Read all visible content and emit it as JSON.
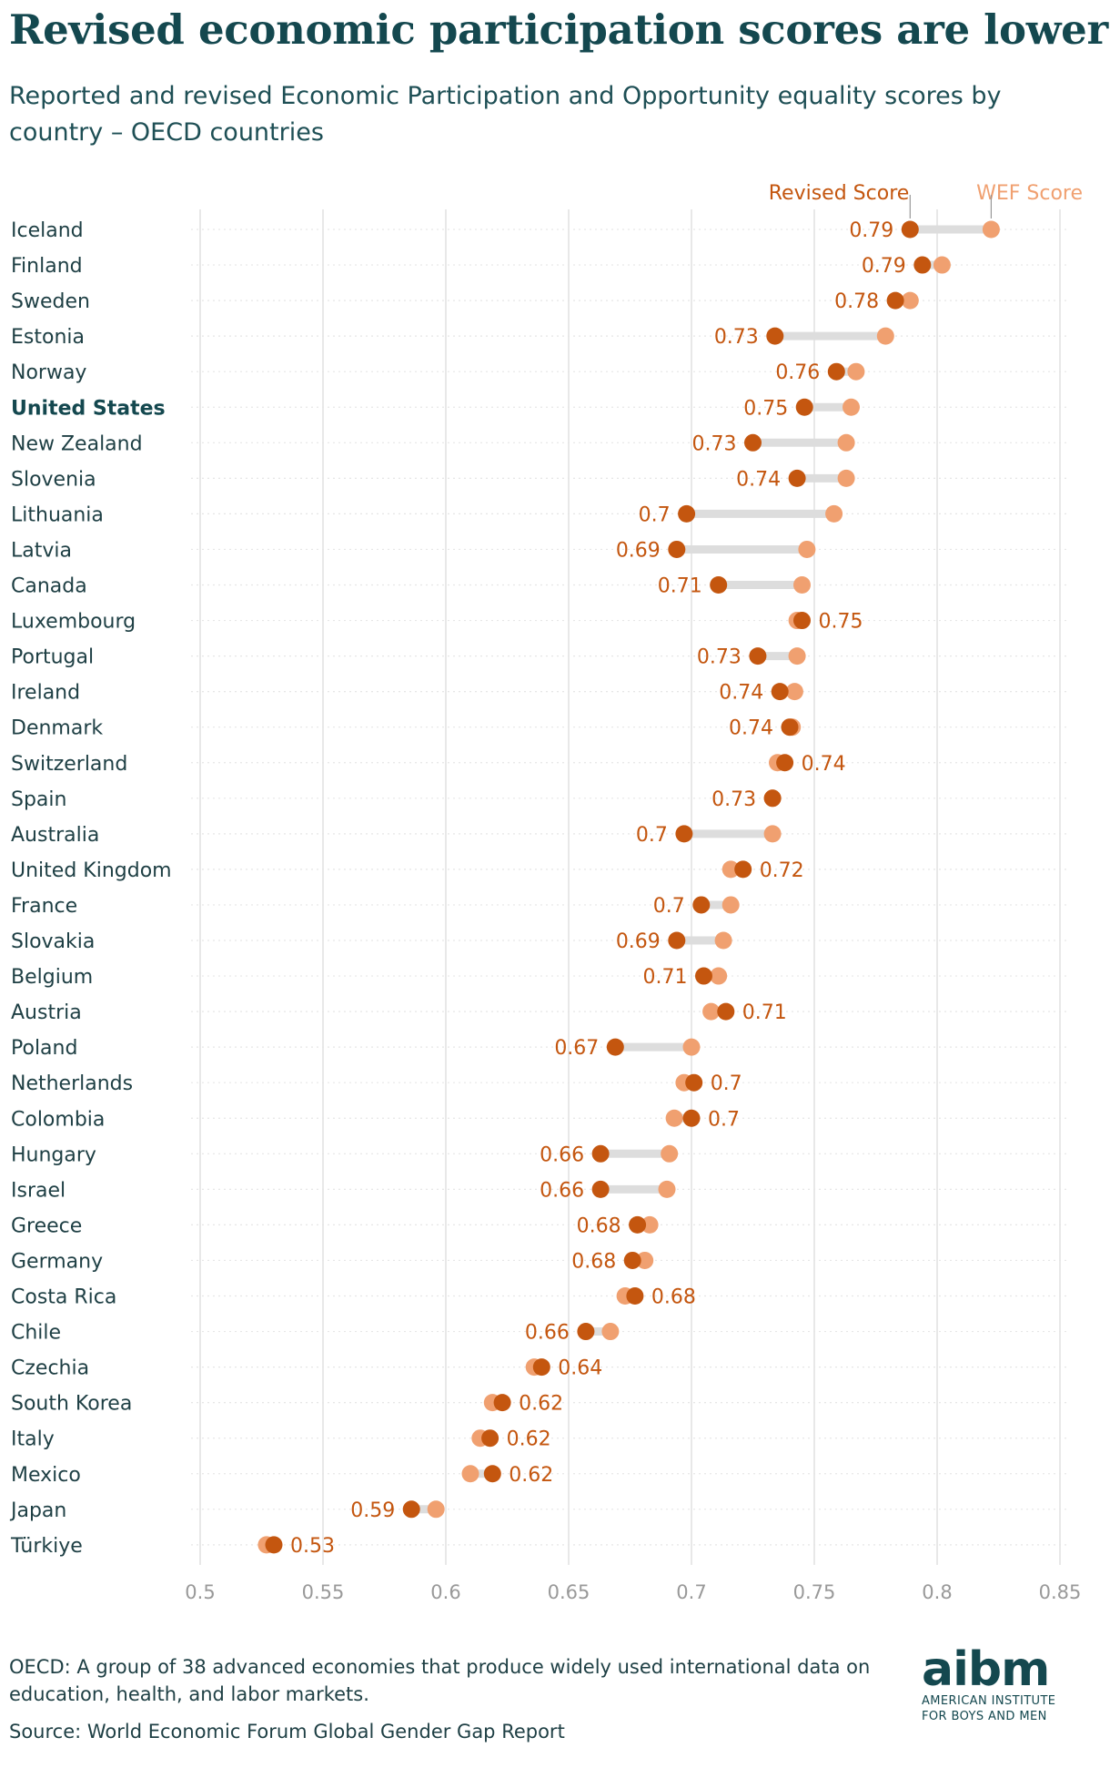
{
  "header": {
    "title": "Revised economic participation scores are lower",
    "subtitle": "Reported and revised Economic Participation and Opportunity equality scores by country – OECD countries"
  },
  "footer": {
    "note": "OECD: A group of 38 advanced economies that produce widely used international data on education, health, and labor markets.",
    "source": "Source: World Economic Forum Global Gender Gap Report"
  },
  "logo": {
    "mark": "aibm",
    "line1": "AMERICAN INSTITUTE",
    "line2": "FOR BOYS AND MEN"
  },
  "colors": {
    "revised": "#c4560f",
    "wef": "#f0a070",
    "connector": "#dddddd",
    "grid": "#e0e0e0",
    "tick_text": "#999999",
    "country_text": "#1e3f44",
    "highlight_text": "#14484f"
  },
  "chart_data": {
    "type": "dumbbell",
    "highlight": "United States",
    "xlim": [
      0.5,
      0.85
    ],
    "xticks": [
      0.5,
      0.55,
      0.6,
      0.65,
      0.7,
      0.75,
      0.8,
      0.85
    ],
    "xtick_labels": [
      "0.5",
      "0.55",
      "0.6",
      "0.65",
      "0.7",
      "0.75",
      "0.8",
      "0.85"
    ],
    "legend": [
      "Revised Score",
      "WEF Score"
    ],
    "countries": [
      {
        "name": "Iceland",
        "revised": 0.789,
        "wef": 0.822,
        "label": "0.79"
      },
      {
        "name": "Finland",
        "revised": 0.794,
        "wef": 0.802,
        "label": "0.79"
      },
      {
        "name": "Sweden",
        "revised": 0.783,
        "wef": 0.789,
        "label": "0.78"
      },
      {
        "name": "Estonia",
        "revised": 0.734,
        "wef": 0.779,
        "label": "0.73"
      },
      {
        "name": "Norway",
        "revised": 0.759,
        "wef": 0.767,
        "label": "0.76"
      },
      {
        "name": "United States",
        "revised": 0.746,
        "wef": 0.765,
        "label": "0.75"
      },
      {
        "name": "New Zealand",
        "revised": 0.725,
        "wef": 0.763,
        "label": "0.73"
      },
      {
        "name": "Slovenia",
        "revised": 0.743,
        "wef": 0.763,
        "label": "0.74"
      },
      {
        "name": "Lithuania",
        "revised": 0.698,
        "wef": 0.758,
        "label": "0.7"
      },
      {
        "name": "Latvia",
        "revised": 0.694,
        "wef": 0.747,
        "label": "0.69"
      },
      {
        "name": "Canada",
        "revised": 0.711,
        "wef": 0.745,
        "label": "0.71"
      },
      {
        "name": "Luxembourg",
        "revised": 0.745,
        "wef": 0.743,
        "label": "0.75"
      },
      {
        "name": "Portugal",
        "revised": 0.727,
        "wef": 0.743,
        "label": "0.73"
      },
      {
        "name": "Ireland",
        "revised": 0.736,
        "wef": 0.742,
        "label": "0.74"
      },
      {
        "name": "Denmark",
        "revised": 0.74,
        "wef": 0.741,
        "label": "0.74"
      },
      {
        "name": "Switzerland",
        "revised": 0.738,
        "wef": 0.735,
        "label": "0.74"
      },
      {
        "name": "Spain",
        "revised": 0.733,
        "wef": 0.733,
        "label": "0.73"
      },
      {
        "name": "Australia",
        "revised": 0.697,
        "wef": 0.733,
        "label": "0.7"
      },
      {
        "name": "United Kingdom",
        "revised": 0.721,
        "wef": 0.716,
        "label": "0.72"
      },
      {
        "name": "France",
        "revised": 0.704,
        "wef": 0.716,
        "label": "0.7"
      },
      {
        "name": "Slovakia",
        "revised": 0.694,
        "wef": 0.713,
        "label": "0.69"
      },
      {
        "name": "Belgium",
        "revised": 0.705,
        "wef": 0.711,
        "label": "0.71"
      },
      {
        "name": "Austria",
        "revised": 0.714,
        "wef": 0.708,
        "label": "0.71"
      },
      {
        "name": "Poland",
        "revised": 0.669,
        "wef": 0.7,
        "label": "0.67"
      },
      {
        "name": "Netherlands",
        "revised": 0.701,
        "wef": 0.697,
        "label": "0.7"
      },
      {
        "name": "Colombia",
        "revised": 0.7,
        "wef": 0.693,
        "label": "0.7"
      },
      {
        "name": "Hungary",
        "revised": 0.663,
        "wef": 0.691,
        "label": "0.66"
      },
      {
        "name": "Israel",
        "revised": 0.663,
        "wef": 0.69,
        "label": "0.66"
      },
      {
        "name": "Greece",
        "revised": 0.678,
        "wef": 0.683,
        "label": "0.68"
      },
      {
        "name": "Germany",
        "revised": 0.676,
        "wef": 0.681,
        "label": "0.68"
      },
      {
        "name": "Costa Rica",
        "revised": 0.677,
        "wef": 0.673,
        "label": "0.68"
      },
      {
        "name": "Chile",
        "revised": 0.657,
        "wef": 0.667,
        "label": "0.66"
      },
      {
        "name": "Czechia",
        "revised": 0.639,
        "wef": 0.636,
        "label": "0.64"
      },
      {
        "name": "South Korea",
        "revised": 0.623,
        "wef": 0.619,
        "label": "0.62"
      },
      {
        "name": "Italy",
        "revised": 0.618,
        "wef": 0.614,
        "label": "0.62"
      },
      {
        "name": "Mexico",
        "revised": 0.619,
        "wef": 0.61,
        "label": "0.62"
      },
      {
        "name": "Japan",
        "revised": 0.586,
        "wef": 0.596,
        "label": "0.59"
      },
      {
        "name": "Türkiye",
        "revised": 0.53,
        "wef": 0.527,
        "label": "0.53"
      }
    ]
  }
}
